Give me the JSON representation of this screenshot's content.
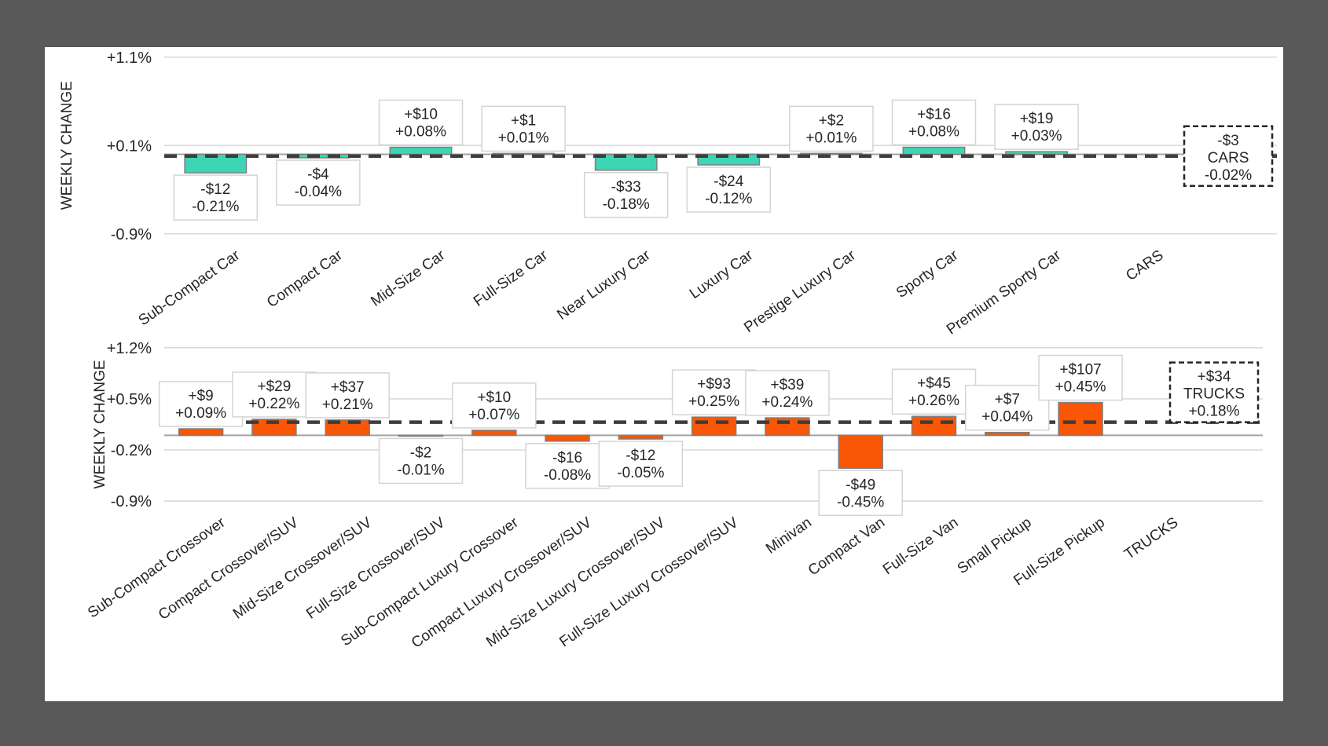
{
  "page": {
    "background_color": "#595959",
    "panel_color": "#ffffff",
    "text_color": "#262626",
    "grid_color": "#d9d9d9",
    "baseline_color": "#a3a3a3",
    "average_line_color": "#3d3d3d",
    "bar_border_color": "#7f7f7f",
    "label_box_border_color": "#d4d4d4"
  },
  "chart_data": [
    {
      "type": "bar",
      "title": "CARS",
      "xlabel": "",
      "ylabel": "WEEKLY CHANGE",
      "legend": "none",
      "grid": "on",
      "bar_color": "#3CD6B4",
      "ylim": [
        -0.9,
        1.1
      ],
      "yticks": [
        {
          "label": "+1.1%",
          "value": 1.1
        },
        {
          "label": "+0.1%",
          "value": 0.1
        },
        {
          "label": "-0.9%",
          "value": -0.9
        }
      ],
      "categories": [
        "Sub-Compact Car",
        "Compact Car",
        "Mid-Size Car",
        "Full-Size Car",
        "Near Luxury Car",
        "Luxury Car",
        "Prestige Luxury Car",
        "Sporty Car",
        "Premium Sporty Car",
        "CARS"
      ],
      "points": [
        {
          "category": "Sub-Compact Car",
          "dollar_label": "-$12",
          "pct_label": "-0.21%",
          "pct": -0.21
        },
        {
          "category": "Compact Car",
          "dollar_label": "-$4",
          "pct_label": "-0.04%",
          "pct": -0.04
        },
        {
          "category": "Mid-Size Car",
          "dollar_label": "+$10",
          "pct_label": "+0.08%",
          "pct": 0.08
        },
        {
          "category": "Full-Size Car",
          "dollar_label": "+$1",
          "pct_label": "+0.01%",
          "pct": 0.01
        },
        {
          "category": "Near Luxury Car",
          "dollar_label": "-$33",
          "pct_label": "-0.18%",
          "pct": -0.18
        },
        {
          "category": "Luxury Car",
          "dollar_label": "-$24",
          "pct_label": "-0.12%",
          "pct": -0.12
        },
        {
          "category": "Prestige Luxury Car",
          "dollar_label": "+$2",
          "pct_label": "+0.01%",
          "pct": 0.01
        },
        {
          "category": "Sporty Car",
          "dollar_label": "+$16",
          "pct_label": "+0.08%",
          "pct": 0.08
        },
        {
          "category": "Premium Sporty Car",
          "dollar_label": "+$19",
          "pct_label": "+0.03%",
          "pct": 0.03
        }
      ],
      "average": {
        "category": "CARS",
        "dollar_label": "-$3",
        "pct_label": "-0.02%",
        "pct": -0.02
      }
    },
    {
      "type": "bar",
      "title": "TRUCKS",
      "xlabel": "",
      "ylabel": "WEEKLY CHANGE",
      "legend": "none",
      "grid": "on",
      "bar_color": "#F95605",
      "ylim": [
        -0.9,
        1.2
      ],
      "yticks": [
        {
          "label": "+1.2%",
          "value": 1.2
        },
        {
          "label": "+0.5%",
          "value": 0.5
        },
        {
          "label": "-0.2%",
          "value": -0.2
        },
        {
          "label": "-0.9%",
          "value": -0.9
        }
      ],
      "categories": [
        "Sub-Compact Crossover",
        "Compact Crossover/SUV",
        "Mid-Size Crossover/SUV",
        "Full-Size Crossover/SUV",
        "Sub-Compact Luxury Crossover",
        "Compact Luxury Crossover/SUV",
        "Mid-Size Luxury Crossover/SUV",
        "Full-Size Luxury Crossover/SUV",
        "Minivan",
        "Compact Van",
        "Full-Size Van",
        "Small Pickup",
        "Full-Size Pickup",
        "TRUCKS"
      ],
      "points": [
        {
          "category": "Sub-Compact Crossover",
          "dollar_label": "+$9",
          "pct_label": "+0.09%",
          "pct": 0.09
        },
        {
          "category": "Compact Crossover/SUV",
          "dollar_label": "+$29",
          "pct_label": "+0.22%",
          "pct": 0.22
        },
        {
          "category": "Mid-Size Crossover/SUV",
          "dollar_label": "+$37",
          "pct_label": "+0.21%",
          "pct": 0.21
        },
        {
          "category": "Full-Size Crossover/SUV",
          "dollar_label": "-$2",
          "pct_label": "-0.01%",
          "pct": -0.01
        },
        {
          "category": "Sub-Compact Luxury Crossover",
          "dollar_label": "+$10",
          "pct_label": "+0.07%",
          "pct": 0.07
        },
        {
          "category": "Compact Luxury Crossover/SUV",
          "dollar_label": "-$16",
          "pct_label": "-0.08%",
          "pct": -0.08
        },
        {
          "category": "Mid-Size Luxury Crossover/SUV",
          "dollar_label": "-$12",
          "pct_label": "-0.05%",
          "pct": -0.05
        },
        {
          "category": "Full-Size Luxury Crossover/SUV",
          "dollar_label": "+$93",
          "pct_label": "+0.25%",
          "pct": 0.25
        },
        {
          "category": "Minivan",
          "dollar_label": "+$39",
          "pct_label": "+0.24%",
          "pct": 0.24
        },
        {
          "category": "Compact Van",
          "dollar_label": "-$49",
          "pct_label": "-0.45%",
          "pct": -0.45
        },
        {
          "category": "Full-Size Van",
          "dollar_label": "+$45",
          "pct_label": "+0.26%",
          "pct": 0.26
        },
        {
          "category": "Small Pickup",
          "dollar_label": "+$7",
          "pct_label": "+0.04%",
          "pct": 0.04
        },
        {
          "category": "Full-Size Pickup",
          "dollar_label": "+$107",
          "pct_label": "+0.45%",
          "pct": 0.45
        }
      ],
      "average": {
        "category": "TRUCKS",
        "dollar_label": "+$34",
        "pct_label": "+0.18%",
        "pct": 0.18
      }
    }
  ]
}
